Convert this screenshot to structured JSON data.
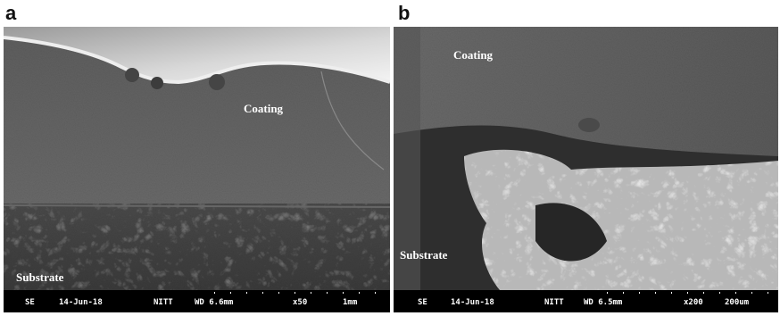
{
  "panels": [
    {
      "label": "a",
      "annotations": [
        "Coating",
        "Substrate"
      ],
      "info_bar": [
        "SE",
        "14-Jun-18",
        "NITT",
        "WD 6.6mm",
        "x50",
        "1mm"
      ]
    },
    {
      "label": "b",
      "annotations": [
        "Coating",
        "Substrate"
      ],
      "info_bar": [
        "SE",
        "14-Jun-18",
        "NITT",
        "WD 6.5mm",
        "x200",
        "200um"
      ]
    }
  ]
}
